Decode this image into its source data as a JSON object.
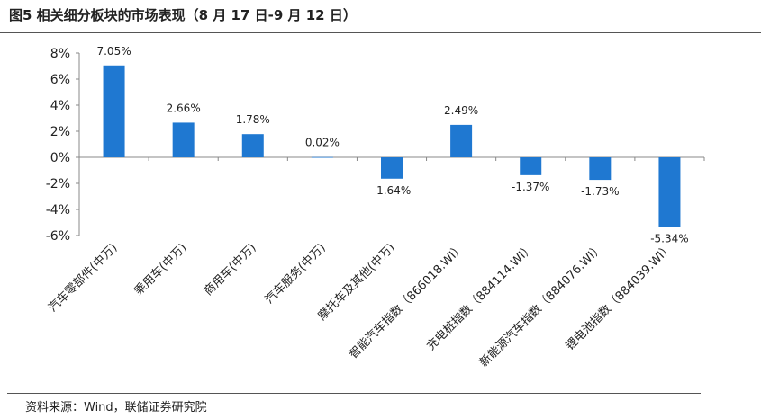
{
  "figure": {
    "title": "图5  相关细分板块的市场表现（8 月 17 日-9 月 12 日）",
    "source": "资料来源：Wind，联储证券研究院"
  },
  "chart_data": {
    "type": "bar",
    "title": "",
    "xlabel": "",
    "ylabel": "",
    "ylim": [
      -6,
      8
    ],
    "yticks": [
      "8%",
      "6%",
      "4%",
      "2%",
      "0%",
      "-2%",
      "-4%",
      "-6%"
    ],
    "yticks_values": [
      8,
      6,
      4,
      2,
      0,
      -2,
      -4,
      -6
    ],
    "grid": false,
    "legend": "none",
    "bar_color": "#1f78d1",
    "categories": [
      "汽车零部件(中万)",
      "乘用车(中万)",
      "商用车(中万)",
      "汽车服务(中万)",
      "摩托车及其他(中万)",
      "智能汽车指数（866018.WI）",
      "充电桩指数（884114.WI）",
      "新能源汽车指数（884076.WI）",
      "锂电池指数（884039.WI）"
    ],
    "values": [
      7.05,
      2.66,
      1.78,
      0.02,
      -1.64,
      2.49,
      -1.37,
      -1.73,
      -5.34
    ],
    "data_labels": [
      "7.05%",
      "2.66%",
      "1.78%",
      "0.02%",
      "-1.64%",
      "2.49%",
      "-1.37%",
      "-1.73%",
      "-5.34%"
    ]
  }
}
